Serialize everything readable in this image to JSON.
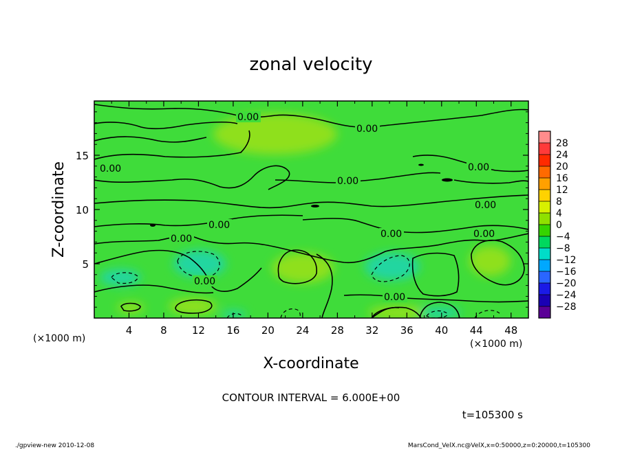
{
  "chart_data": {
    "type": "heatmap",
    "title": "zonal velocity",
    "xlabel": "X-coordinate",
    "ylabel": "Z-coordinate",
    "x_unit": "(×1000 m)",
    "y_unit": "(×1000 m)",
    "xlim": [
      0,
      50
    ],
    "ylim": [
      0,
      20
    ],
    "x_ticks": [
      "4",
      "8",
      "12",
      "16",
      "20",
      "24",
      "28",
      "32",
      "36",
      "40",
      "44",
      "48"
    ],
    "y_ticks": [
      "5",
      "10",
      "15"
    ],
    "colorbar": {
      "ticks": [
        "28",
        "24",
        "20",
        "16",
        "12",
        "8",
        "4",
        "0",
        "−4",
        "−8",
        "−12",
        "−16",
        "−20",
        "−24",
        "−28"
      ],
      "colors": [
        "#ff8c8c",
        "#ff3a3a",
        "#ff2a00",
        "#ff6a00",
        "#ffa000",
        "#ffd200",
        "#d8f000",
        "#8fe000",
        "#35d400",
        "#00d85e",
        "#00dcc8",
        "#00a8ff",
        "#2a66ff",
        "#1a1ae6",
        "#1a00b4",
        "#5a0096"
      ]
    },
    "contour_labels": [
      "0.00",
      "0.00",
      "0.00",
      "0.00",
      "0.00",
      "0.00",
      "0.00",
      "0.00",
      "0.00",
      "0.00",
      "0.00",
      "0.00"
    ],
    "contour_interval": "CONTOUR INTERVAL = 6.000E+00",
    "time": "t=105300 s"
  },
  "footer": {
    "left": "./gpview-new   2010-12-08",
    "right": "MarsCond_VelX.nc@VelX,x=0:50000,z=0:20000,t=105300"
  },
  "colors": {
    "field_background": "#3fdc3a",
    "positive_region": "#8fe01a",
    "negative_region": "#22d6a0"
  }
}
